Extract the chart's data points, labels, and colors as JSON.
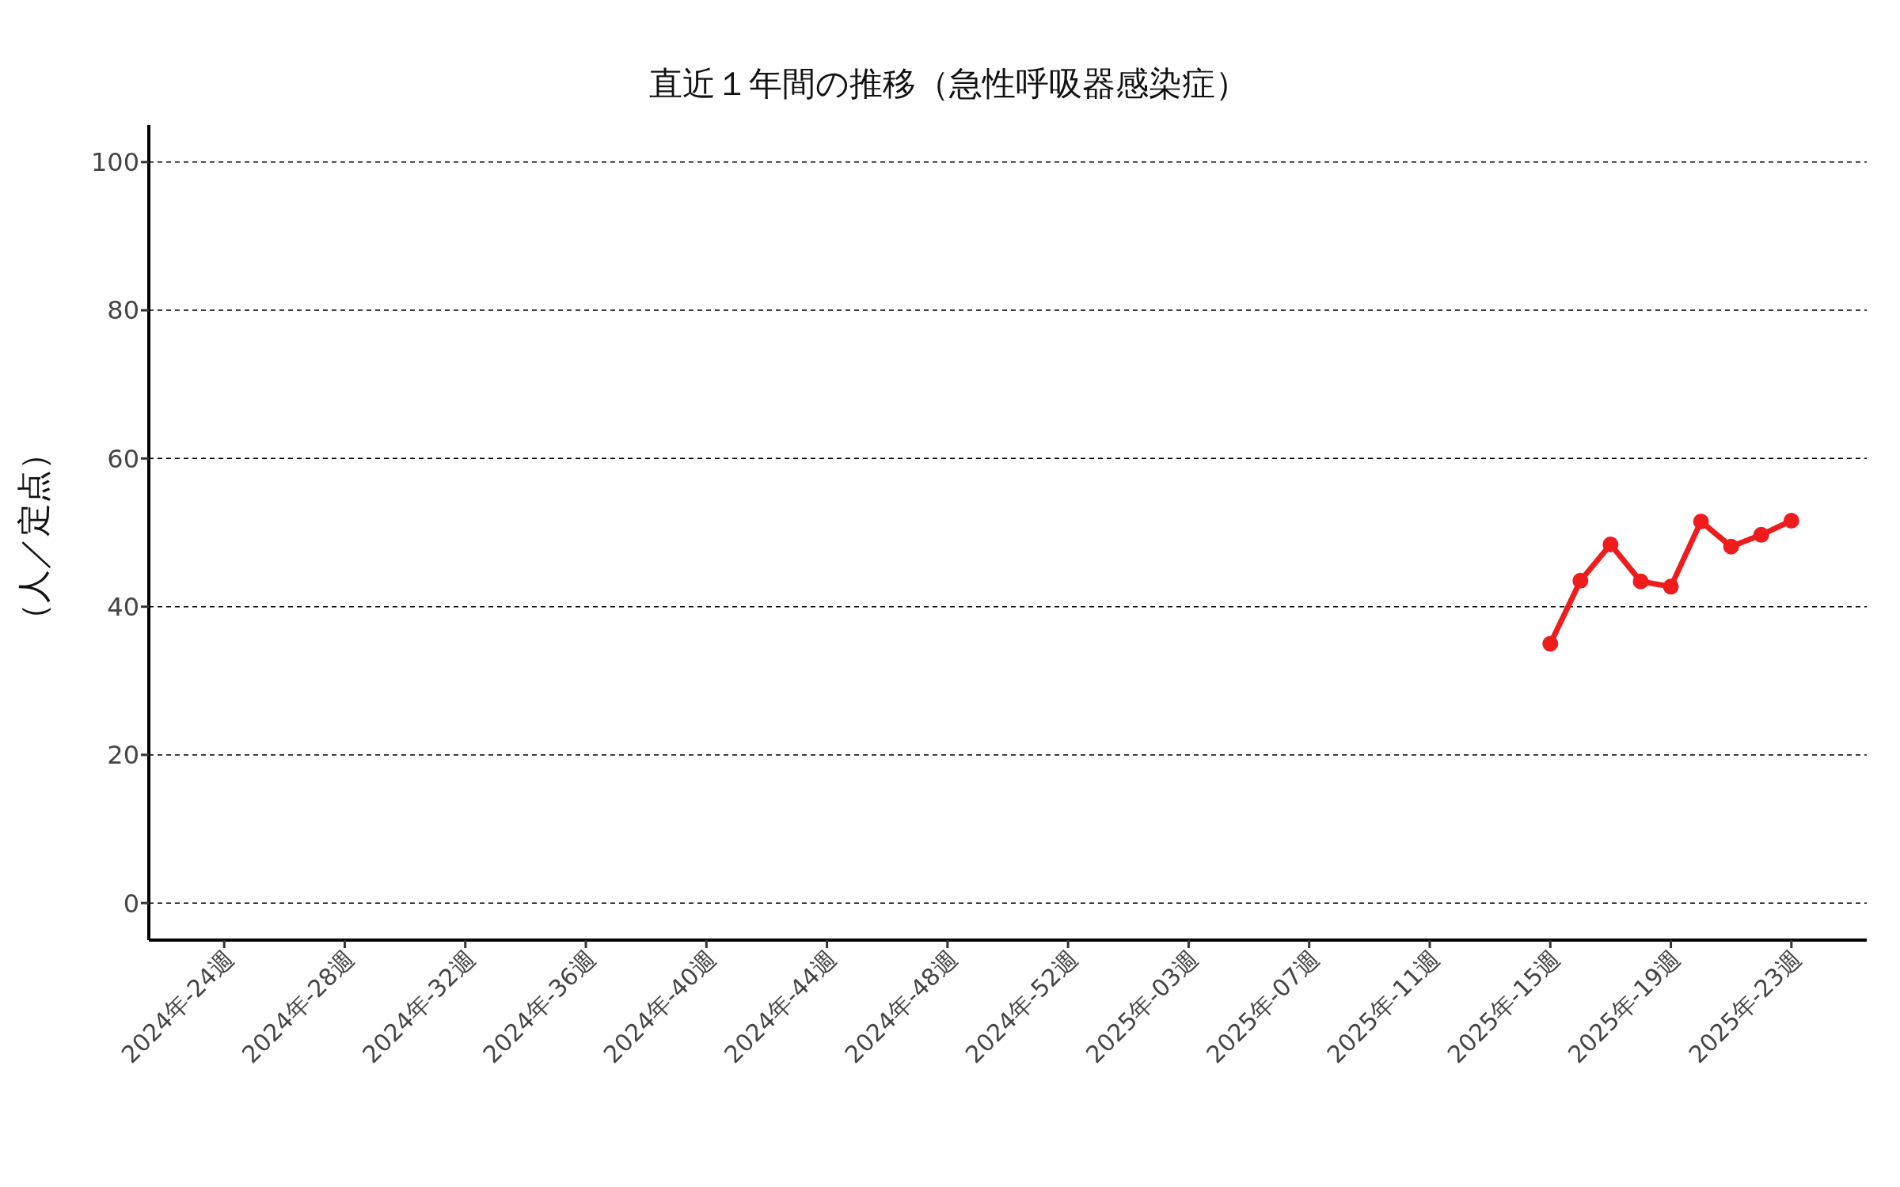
{
  "chart_data": {
    "type": "line",
    "title": "直近１年間の推移（急性呼吸器感染症）",
    "ylabel": "（人／定点）",
    "categories": [
      "2024年-24週",
      null,
      null,
      null,
      "2024年-28週",
      null,
      null,
      null,
      "2024年-32週",
      null,
      null,
      null,
      "2024年-36週",
      null,
      null,
      null,
      "2024年-40週",
      null,
      null,
      null,
      "2024年-44週",
      null,
      null,
      null,
      "2024年-48週",
      null,
      null,
      null,
      "2024年-52週",
      null,
      null,
      null,
      "2025年-03週",
      null,
      null,
      null,
      "2025年-07週",
      null,
      null,
      null,
      "2025年-11週",
      null,
      null,
      null,
      "2025年-15週",
      null,
      null,
      null,
      "2025年-19週",
      null,
      null,
      null,
      "2025年-23週"
    ],
    "series": [
      {
        "color": "#ee1c1c",
        "values": [
          null,
          null,
          null,
          null,
          null,
          null,
          null,
          null,
          null,
          null,
          null,
          null,
          null,
          null,
          null,
          null,
          null,
          null,
          null,
          null,
          null,
          null,
          null,
          null,
          null,
          null,
          null,
          null,
          null,
          null,
          null,
          null,
          null,
          null,
          null,
          null,
          null,
          null,
          null,
          null,
          null,
          null,
          null,
          null,
          35.0,
          43.5,
          48.4,
          43.4,
          42.7,
          51.5,
          48.1,
          49.7,
          51.6
        ]
      }
    ],
    "ylim": [
      -5,
      105
    ],
    "yticks": [
      0,
      20,
      40,
      60,
      80,
      100
    ],
    "grid": "y",
    "legend": false,
    "marker": "circle",
    "line_style": "solid"
  }
}
